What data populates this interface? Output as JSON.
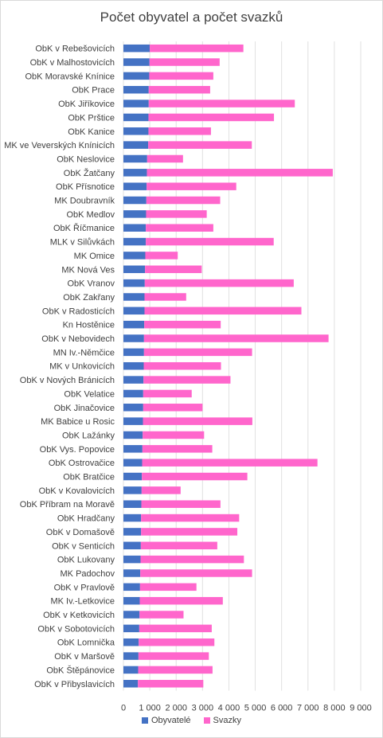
{
  "chart_data": {
    "type": "bar",
    "orientation": "horizontal",
    "stacked": true,
    "title": "Počet obyvatel a počet svazků",
    "categories": [
      "ObK v Rebešovicích",
      "ObK v Malhostovicích",
      "ObK Moravské Knínice",
      "ObK Prace",
      "ObK Jiříkovice",
      "ObK Prštice",
      "ObK Kanice",
      "MK ve Veverských Knínicích",
      "ObK Neslovice",
      "ObK Žatčany",
      "ObK Přísnotice",
      "MK Doubravník",
      "ObK Medlov",
      "ObK Říčmanice",
      "MLK v Silůvkách",
      "MK Omice",
      "MK Nová Ves",
      "ObK Vranov",
      "ObK Zakřany",
      "ObK v Radosticích",
      "Kn Hostěnice",
      "ObK  v Nebovidech",
      "MN Iv.-Němčice",
      "MK v Unkovicích",
      "ObK  v Nových Bránicích",
      "ObK Velatice",
      "ObK Jinačovice",
      "MK Babice u Rosic",
      "ObK Lažánky",
      "ObK Vys. Popovice",
      "ObK Ostrovačice",
      "ObK Bratčice",
      "ObK v Kovalovicích",
      "ObK Příbram na Moravě",
      "ObK Hradčany",
      "ObK v Domašově",
      "ObK v Senticích",
      "ObK Lukovany",
      "MK Padochov",
      "ObK v Pravlově",
      "MK Iv.-Letkovice",
      "ObK v Ketkovicích",
      "ObK  v Sobotovicích",
      "ObK Lomnička",
      "ObK v Maršově",
      "ObK Štěpánovice",
      "ObK v Přibyslavicích"
    ],
    "series": [
      {
        "name": "Obyvatelé",
        "color": "#4472c4",
        "values": [
          1000,
          990,
          980,
          960,
          960,
          950,
          950,
          940,
          900,
          890,
          880,
          870,
          860,
          850,
          850,
          830,
          820,
          810,
          800,
          800,
          790,
          780,
          780,
          770,
          760,
          750,
          750,
          740,
          730,
          720,
          710,
          700,
          690,
          680,
          670,
          670,
          660,
          650,
          640,
          630,
          620,
          610,
          600,
          580,
          570,
          560,
          550
        ]
      },
      {
        "name": "Svazky",
        "color": "#ff66cc",
        "values": [
          3550,
          2660,
          2430,
          2330,
          5540,
          4760,
          2370,
          3930,
          1360,
          7050,
          3400,
          2800,
          2300,
          2560,
          4850,
          1230,
          2150,
          5650,
          1580,
          5950,
          2900,
          7000,
          4100,
          2930,
          3300,
          1840,
          2250,
          4150,
          2330,
          2650,
          6650,
          4000,
          1480,
          3000,
          3720,
          3650,
          2900,
          3920,
          4240,
          2140,
          3150,
          1670,
          2750,
          2870,
          2670,
          2820,
          2480
        ]
      }
    ],
    "xlim": [
      0,
      9000
    ],
    "x_ticks": [
      "0",
      "1 000",
      "2 000",
      "3 000",
      "4 000",
      "5 000",
      "6 000",
      "7 000",
      "8 000",
      "9 000"
    ],
    "grid": true,
    "legend_position": "bottom"
  }
}
